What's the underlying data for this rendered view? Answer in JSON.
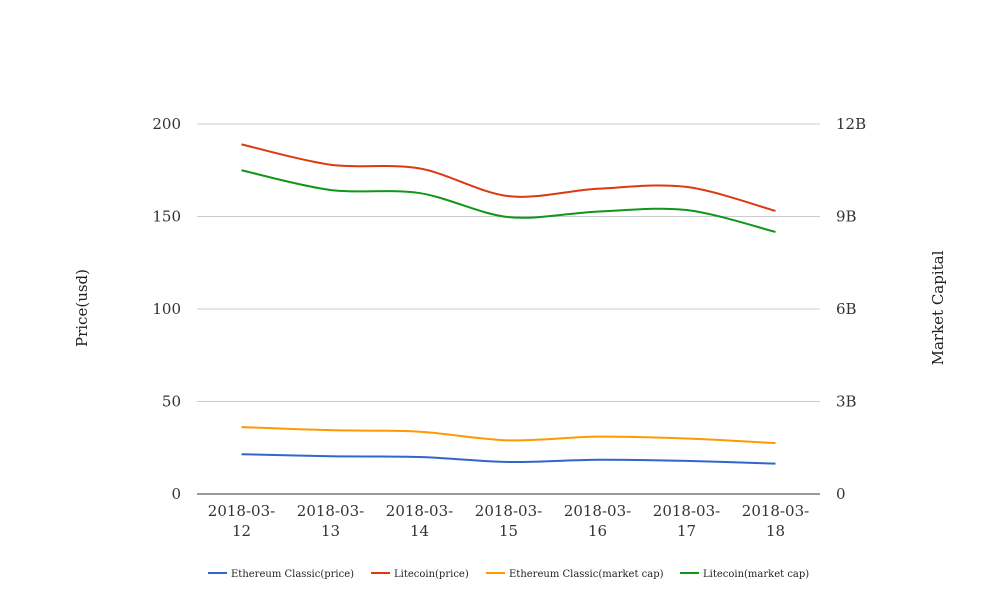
{
  "chart_data": {
    "type": "line",
    "x": [
      "2018-03-12",
      "2018-03-13",
      "2018-03-14",
      "2018-03-15",
      "2018-03-16",
      "2018-03-17",
      "2018-03-18"
    ],
    "x_tick_lines": [
      [
        "2018-03-",
        "12"
      ],
      [
        "2018-03-",
        "13"
      ],
      [
        "2018-03-",
        "14"
      ],
      [
        "2018-03-",
        "15"
      ],
      [
        "2018-03-",
        "16"
      ],
      [
        "2018-03-",
        "17"
      ],
      [
        "2018-03-",
        "18"
      ]
    ],
    "ylabel_left": "Price(usd)",
    "ylabel_right": "Market Capital",
    "ylim_left": [
      0,
      200
    ],
    "ylim_right": [
      0,
      12000000000
    ],
    "yticks_left": [
      "0",
      "50",
      "100",
      "150",
      "200"
    ],
    "yticks_right": [
      "0",
      "3B",
      "6B",
      "9B",
      "12B"
    ],
    "grid": true,
    "legend_position": "bottom",
    "series": [
      {
        "name": "Ethereum Classic(price)",
        "axis": "left",
        "color": "#3366cc",
        "values": [
          21.5,
          20.4,
          20.0,
          17.3,
          18.5,
          17.9,
          16.4
        ]
      },
      {
        "name": "Litecoin(price)",
        "axis": "left",
        "color": "#dc3912",
        "values": [
          189,
          178,
          176,
          161,
          165,
          166,
          153
        ]
      },
      {
        "name": "Ethereum Classic(market cap)",
        "axis": "right",
        "color": "#ff9900",
        "values": [
          2170000000,
          2070000000,
          2020000000,
          1740000000,
          1860000000,
          1800000000,
          1650000000
        ]
      },
      {
        "name": "Litecoin(market cap)",
        "axis": "right",
        "color": "#109618",
        "values": [
          10500000000,
          9860000000,
          9760000000,
          8980000000,
          9160000000,
          9210000000,
          8500000000
        ]
      }
    ]
  }
}
